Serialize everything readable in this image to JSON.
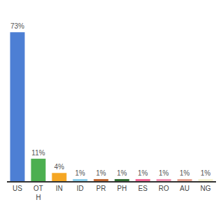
{
  "chart_data": {
    "type": "bar",
    "categories": [
      "US",
      "OT\nH",
      "IN",
      "ID",
      "PR",
      "PH",
      "ES",
      "RO",
      "AU",
      "NG"
    ],
    "values": [
      73,
      11,
      4,
      1,
      1,
      1,
      1,
      1,
      1,
      1
    ],
    "value_labels": [
      "73%",
      "11%",
      "4%",
      "1%",
      "1%",
      "1%",
      "1%",
      "1%",
      "1%",
      "1%"
    ],
    "colors": [
      "#4d7fd4",
      "#4caf50",
      "#f5a623",
      "#87ceeb",
      "#c0622b",
      "#2d6b2d",
      "#f06292",
      "#f48fb1",
      "#e8a090",
      "#f5f0d0"
    ],
    "ylim": [
      0,
      82
    ],
    "data_labels": true,
    "tick_labels": "x",
    "grid": false
  }
}
